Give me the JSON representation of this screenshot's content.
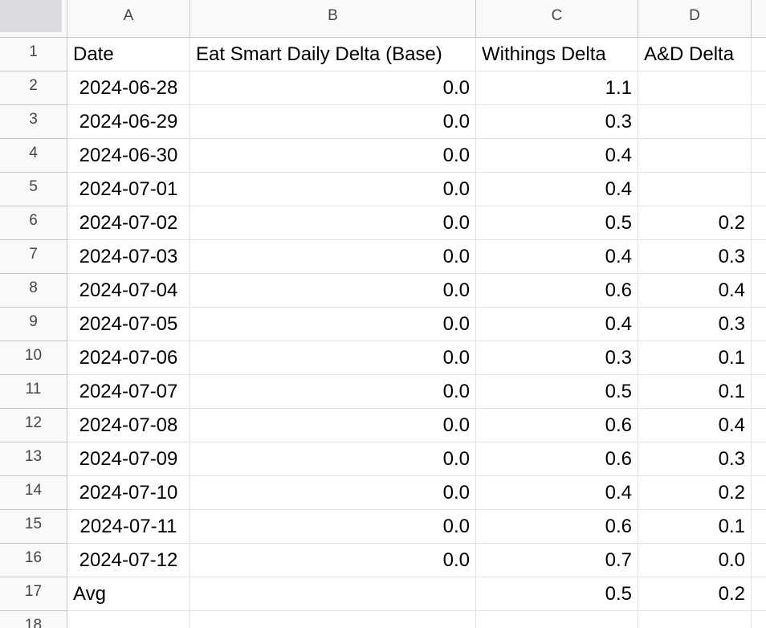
{
  "columns": [
    "A",
    "B",
    "C",
    "D"
  ],
  "rows": [
    {
      "num": "1",
      "cells": [
        "Date",
        "Eat Smart Daily Delta (Base)",
        "Withings Delta",
        "A&D Delta"
      ]
    },
    {
      "num": "2",
      "cells": [
        "2024-06-28",
        "0.0",
        "1.1",
        ""
      ]
    },
    {
      "num": "3",
      "cells": [
        "2024-06-29",
        "0.0",
        "0.3",
        ""
      ]
    },
    {
      "num": "4",
      "cells": [
        "2024-06-30",
        "0.0",
        "0.4",
        ""
      ]
    },
    {
      "num": "5",
      "cells": [
        "2024-07-01",
        "0.0",
        "0.4",
        ""
      ]
    },
    {
      "num": "6",
      "cells": [
        "2024-07-02",
        "0.0",
        "0.5",
        "0.2"
      ]
    },
    {
      "num": "7",
      "cells": [
        "2024-07-03",
        "0.0",
        "0.4",
        "0.3"
      ]
    },
    {
      "num": "8",
      "cells": [
        "2024-07-04",
        "0.0",
        "0.6",
        "0.4"
      ]
    },
    {
      "num": "9",
      "cells": [
        "2024-07-05",
        "0.0",
        "0.4",
        "0.3"
      ]
    },
    {
      "num": "10",
      "cells": [
        "2024-07-06",
        "0.0",
        "0.3",
        "0.1"
      ]
    },
    {
      "num": "11",
      "cells": [
        "2024-07-07",
        "0.0",
        "0.5",
        "0.1"
      ]
    },
    {
      "num": "12",
      "cells": [
        "2024-07-08",
        "0.0",
        "0.6",
        "0.4"
      ]
    },
    {
      "num": "13",
      "cells": [
        "2024-07-09",
        "0.0",
        "0.6",
        "0.3"
      ]
    },
    {
      "num": "14",
      "cells": [
        "2024-07-10",
        "0.0",
        "0.4",
        "0.2"
      ]
    },
    {
      "num": "15",
      "cells": [
        "2024-07-11",
        "0.0",
        "0.6",
        "0.1"
      ]
    },
    {
      "num": "16",
      "cells": [
        "2024-07-12",
        "0.0",
        "0.7",
        "0.0"
      ]
    },
    {
      "num": "17",
      "cells": [
        "Avg",
        "",
        "0.5",
        "0.2"
      ]
    },
    {
      "num": "18",
      "cells": [
        "",
        "",
        "",
        ""
      ]
    }
  ]
}
